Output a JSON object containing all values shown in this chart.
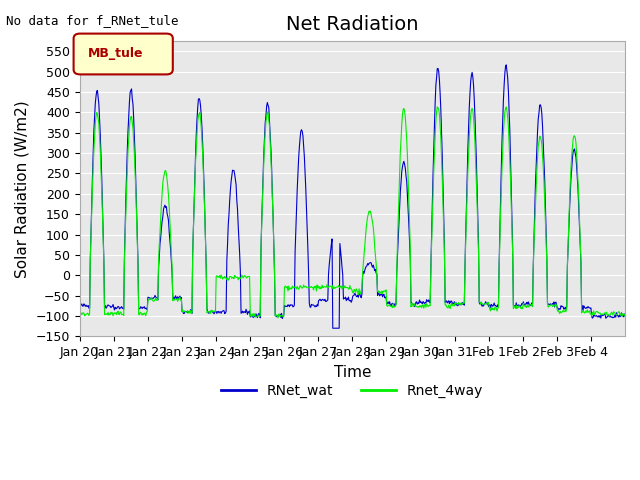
{
  "title": "Net Radiation",
  "xlabel": "Time",
  "ylabel": "Solar Radiation (W/m2)",
  "ylim": [
    -150,
    575
  ],
  "yticks": [
    -150,
    -100,
    -50,
    0,
    50,
    100,
    150,
    200,
    250,
    300,
    350,
    400,
    450,
    500,
    550
  ],
  "line1_color": "#0000cc",
  "line2_color": "#00ee00",
  "line1_label": "RNet_wat",
  "line2_label": "Rnet_4way",
  "annotation_text": "No data for f_RNet_tule",
  "legend_label": "MB_tule",
  "legend_facecolor": "#ffffcc",
  "legend_edgecolor": "#aa0000",
  "bg_color": "#e8e8e8",
  "title_fontsize": 14,
  "axis_label_fontsize": 11,
  "tick_label_fontsize": 9,
  "xtick_labels": [
    "Jan 20",
    "Jan 21",
    "Jan 22",
    "Jan 23",
    "Jan 24",
    "Jan 25",
    "Jan 26",
    "Jan 27",
    "Jan 28",
    "Jan 29",
    "Jan 30",
    "Jan 31",
    "Feb 1",
    "Feb 2",
    "Feb 3",
    "Feb 4"
  ]
}
